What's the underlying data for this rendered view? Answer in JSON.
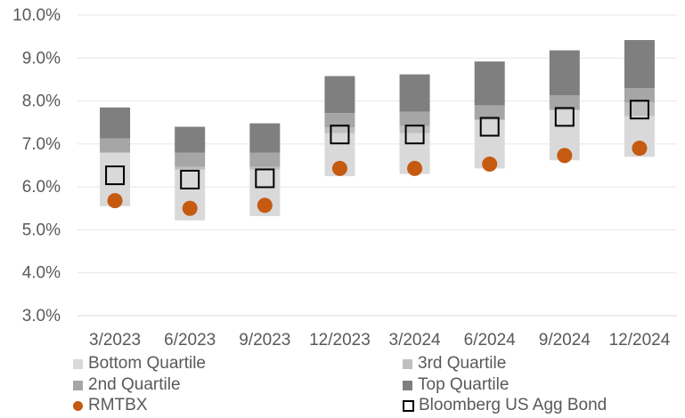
{
  "chart_data": {
    "type": "bar",
    "subtype": "stacked-floating-quartile-range",
    "categories": [
      "3/2023",
      "6/2023",
      "9/2023",
      "12/2023",
      "3/2024",
      "6/2024",
      "9/2024",
      "12/2024"
    ],
    "ylim": [
      3.0,
      10.0
    ],
    "yticks": [
      "3.0%",
      "4.0%",
      "5.0%",
      "6.0%",
      "7.0%",
      "8.0%",
      "9.0%",
      "10.0%"
    ],
    "grid": true,
    "legend_position": "bottom",
    "quartile_bounds": [
      {
        "min": 5.55,
        "q1": 6.8,
        "median": 7.13,
        "q3": 7.13,
        "max": 7.85
      },
      {
        "min": 5.22,
        "q1": 6.4,
        "median": 6.8,
        "q3": 6.8,
        "max": 7.4
      },
      {
        "min": 5.32,
        "q1": 6.4,
        "median": 6.8,
        "q3": 6.8,
        "max": 7.48
      },
      {
        "min": 6.25,
        "q1": 7.25,
        "median": 7.72,
        "q3": 7.72,
        "max": 8.58
      },
      {
        "min": 6.3,
        "q1": 7.25,
        "median": 7.75,
        "q3": 7.75,
        "max": 8.62
      },
      {
        "min": 6.43,
        "q1": 7.55,
        "median": 7.9,
        "q3": 7.9,
        "max": 8.92
      },
      {
        "min": 6.62,
        "q1": 7.78,
        "median": 8.13,
        "q3": 8.13,
        "max": 9.18
      },
      {
        "min": 6.7,
        "q1": 7.65,
        "median": 8.3,
        "q3": 8.3,
        "max": 9.42
      }
    ],
    "series": [
      {
        "name": "Bottom Quartile",
        "color": "#d9d9d9"
      },
      {
        "name": "3rd Quartile",
        "color": "#bfbfbf"
      },
      {
        "name": "2nd Quartile",
        "color": "#a6a6a6"
      },
      {
        "name": "Top Quartile",
        "color": "#7f7f7f"
      },
      {
        "name": "RMTBX",
        "color": "#c55a11",
        "values": [
          5.68,
          5.5,
          5.57,
          6.43,
          6.43,
          6.53,
          6.73,
          6.9
        ]
      },
      {
        "name": "Bloomberg US Agg Bond",
        "color": "#000000",
        "values": [
          6.27,
          6.17,
          6.2,
          7.22,
          7.22,
          7.4,
          7.63,
          7.8
        ]
      }
    ]
  }
}
